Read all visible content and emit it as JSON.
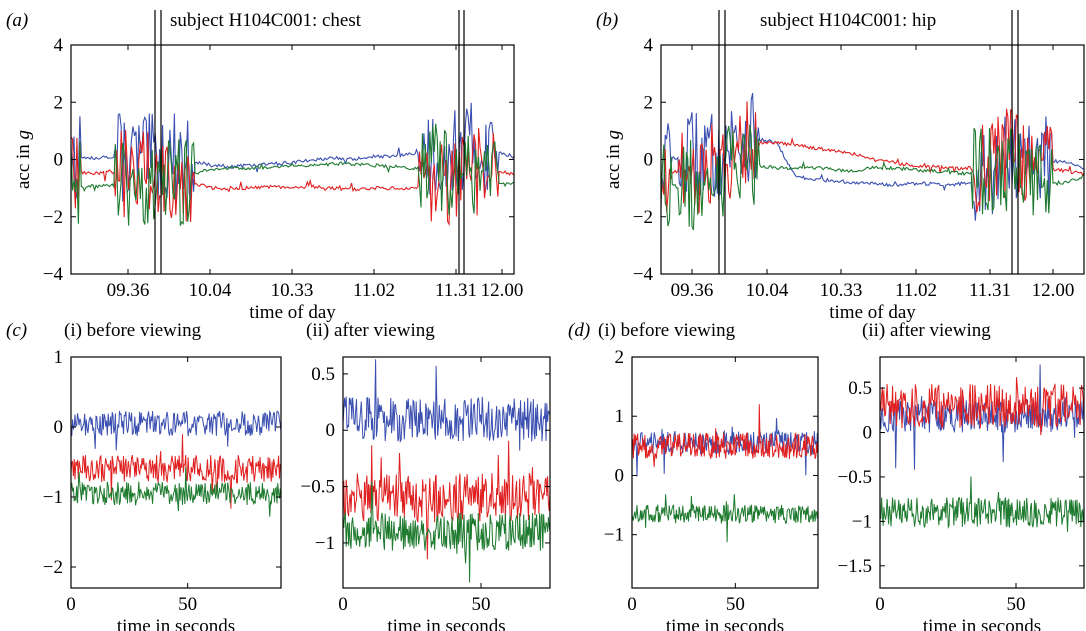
{
  "panels": [
    {
      "letter": "(a)",
      "title": "subject H104C001: chest"
    },
    {
      "letter": "(b)",
      "title": "subject H104C001: hip"
    },
    {
      "letter": "(c)",
      "title": ""
    },
    {
      "letter": "(d)",
      "title": ""
    }
  ],
  "chart_data": [
    {
      "id": "a",
      "type": "line",
      "title": "subject H104C001: chest",
      "ylabel": "acc in g",
      "xlabel": "time of day",
      "xticks": [
        "09.36",
        "10.04",
        "10.33",
        "11.02",
        "11.31",
        "12.00"
      ],
      "yticks": [
        4,
        2,
        0,
        -2,
        -4
      ],
      "ylim": [
        -4,
        4
      ],
      "markers": [
        "09.51",
        "11.38"
      ],
      "series": [
        {
          "color": "#3a4fb0",
          "values": [
            0.1,
            0.05,
            0.1,
            0.1,
            0.0,
            0.1,
            -0.05,
            -0.2,
            -0.25,
            -0.2,
            -0.15,
            -0.1,
            0.0,
            0.05,
            0.0,
            0.1,
            0.1,
            0.2,
            0.2,
            0.3,
            0.4,
            0.3,
            0.1
          ]
        },
        {
          "color": "#e02020",
          "values": [
            -0.4,
            -0.5,
            -0.45,
            -0.4,
            -0.5,
            -0.45,
            -0.8,
            -1.0,
            -1.0,
            -1.0,
            -0.95,
            -1.0,
            -0.95,
            -1.0,
            -1.05,
            -1.0,
            -1.0,
            -1.0,
            -1.0,
            -0.95,
            -0.5,
            -0.4,
            -0.5
          ]
        },
        {
          "color": "#1e7a2e",
          "values": [
            -0.9,
            -0.95,
            -0.9,
            -0.85,
            -0.9,
            -0.9,
            -0.5,
            -0.35,
            -0.3,
            -0.3,
            -0.25,
            -0.2,
            -0.2,
            -0.15,
            -0.15,
            -0.2,
            -0.25,
            -0.3,
            -0.3,
            -0.4,
            -0.8,
            -0.9,
            -0.85
          ]
        }
      ]
    },
    {
      "id": "b",
      "type": "line",
      "title": "subject H104C001: hip",
      "ylabel": "acc in g",
      "xlabel": "time of day",
      "xticks": [
        "09.36",
        "10.04",
        "10.33",
        "11.02",
        "11.31",
        "12.00"
      ],
      "yticks": [
        4,
        2,
        0,
        -2,
        -4
      ],
      "ylim": [
        -4,
        4
      ],
      "markers": [
        "09.51",
        "11.38"
      ],
      "series": [
        {
          "color": "#3a4fb0",
          "values": [
            0.1,
            0.05,
            0.1,
            0.2,
            0.8,
            0.7,
            0.6,
            -0.6,
            -0.7,
            -0.75,
            -0.8,
            -0.85,
            -0.9,
            -0.85,
            -0.85,
            -0.9,
            -0.8,
            -0.7,
            0.3,
            0.2,
            0.0,
            -0.1,
            -0.3
          ]
        },
        {
          "color": "#e02020",
          "values": [
            -0.4,
            -0.45,
            -0.4,
            -0.3,
            0.5,
            0.6,
            0.6,
            0.5,
            0.4,
            0.3,
            0.2,
            0.0,
            -0.1,
            -0.2,
            -0.25,
            -0.3,
            -0.3,
            -0.3,
            0.2,
            0.1,
            -0.3,
            -0.4,
            -0.5
          ]
        },
        {
          "color": "#1e7a2e",
          "values": [
            -0.9,
            -0.95,
            -0.9,
            -0.85,
            0.0,
            -0.2,
            -0.3,
            -0.3,
            -0.3,
            -0.35,
            -0.4,
            -0.3,
            -0.3,
            -0.35,
            -0.4,
            -0.45,
            -0.5,
            -0.5,
            -0.2,
            -0.3,
            -0.9,
            -0.8,
            -0.6
          ]
        }
      ]
    },
    {
      "id": "c_i",
      "type": "line",
      "title": "(i)  before viewing",
      "xlabel": "time in seconds",
      "xlim": [
        0,
        90
      ],
      "xticks": [
        0,
        50
      ],
      "yticks": [
        1,
        0,
        -1,
        -2
      ],
      "ylim": [
        -2.3,
        1.0
      ],
      "series": [
        {
          "color": "#3a4fb0",
          "mean": 0.05,
          "noise": 0.18
        },
        {
          "color": "#e02020",
          "mean": -0.6,
          "noise": 0.2
        },
        {
          "color": "#1e7a2e",
          "mean": -0.95,
          "noise": 0.17
        }
      ]
    },
    {
      "id": "c_ii",
      "type": "line",
      "title": "(ii)    after viewing",
      "xlabel": "time in seconds",
      "xlim": [
        0,
        75
      ],
      "xticks": [
        0,
        50
      ],
      "yticks": [
        0.5,
        0,
        -0.5,
        -1.0
      ],
      "ylim": [
        -1.4,
        0.65
      ],
      "series": [
        {
          "color": "#3a4fb0",
          "mean": 0.1,
          "noise": 0.2
        },
        {
          "color": "#e02020",
          "mean": -0.6,
          "noise": 0.22
        },
        {
          "color": "#1e7a2e",
          "mean": -0.9,
          "noise": 0.17
        }
      ]
    },
    {
      "id": "d_i",
      "type": "line",
      "title": "(i)  before viewing",
      "xlabel": "time in seconds",
      "xlim": [
        0,
        90
      ],
      "xticks": [
        0,
        50
      ],
      "yticks": [
        2,
        1,
        0,
        -1
      ],
      "ylim": [
        -1.9,
        2.0
      ],
      "series": [
        {
          "color": "#3a4fb0",
          "mean": 0.55,
          "noise": 0.2
        },
        {
          "color": "#e02020",
          "mean": 0.5,
          "noise": 0.22
        },
        {
          "color": "#1e7a2e",
          "mean": -0.65,
          "noise": 0.16
        }
      ]
    },
    {
      "id": "d_ii",
      "type": "line",
      "title": "(ii)    after viewing",
      "xlabel": "time in seconds",
      "xlim": [
        0,
        75
      ],
      "xticks": [
        0,
        50
      ],
      "yticks": [
        0.5,
        0,
        -0.5,
        -1.0,
        -1.5
      ],
      "ylim": [
        -1.75,
        0.85
      ],
      "series": [
        {
          "color": "#3a4fb0",
          "mean": 0.2,
          "noise": 0.2
        },
        {
          "color": "#e02020",
          "mean": 0.3,
          "noise": 0.25
        },
        {
          "color": "#1e7a2e",
          "mean": -0.9,
          "noise": 0.17
        }
      ]
    }
  ]
}
